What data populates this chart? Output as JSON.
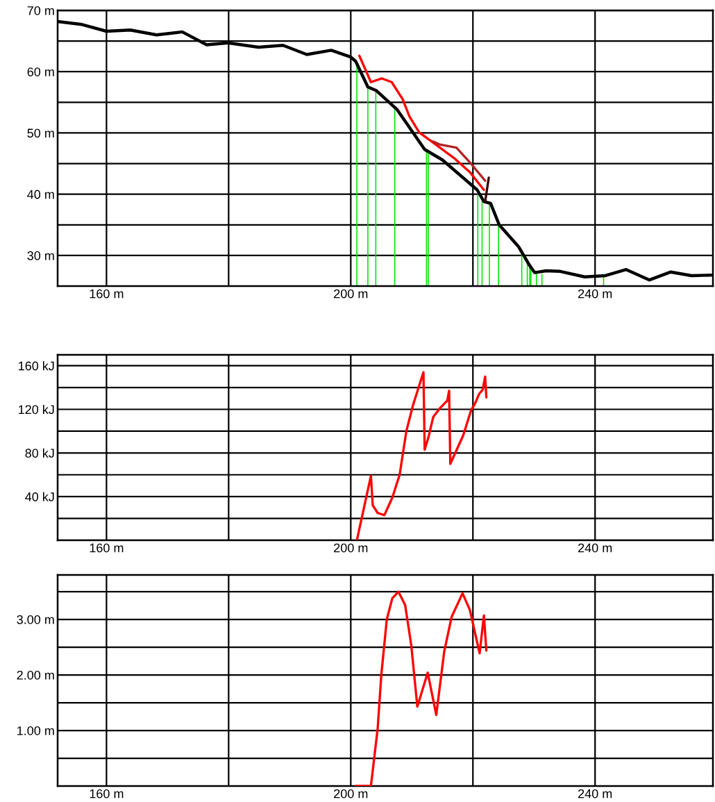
{
  "chart_data": [
    {
      "type": "line",
      "xlim": [
        152,
        259.3
      ],
      "ylim": [
        25,
        70
      ],
      "grid": true,
      "xticks": [
        {
          "value": 160,
          "label": "160 m"
        },
        {
          "value": 180,
          "label": null
        },
        {
          "value": 200,
          "label": "200 m"
        },
        {
          "value": 220,
          "label": null
        },
        {
          "value": 240,
          "label": "240 m"
        }
      ],
      "yticks": [
        {
          "value": 30,
          "label": "30 m"
        },
        {
          "value": 35,
          "label": null
        },
        {
          "value": 40,
          "label": "40 m"
        },
        {
          "value": 45,
          "label": null
        },
        {
          "value": 50,
          "label": "50 m"
        },
        {
          "value": 55,
          "label": null
        },
        {
          "value": 60,
          "label": "60 m"
        },
        {
          "value": 65,
          "label": null
        },
        {
          "value": 70,
          "label": "70 m"
        }
      ],
      "series": [
        {
          "type": "bar",
          "color": "#00e600",
          "x": [
            201.0,
            202.8,
            204.1,
            207.2,
            212.4,
            212.7,
            220.8,
            221.5,
            222.7,
            224.2,
            228.0,
            228.9,
            229.3,
            229.5,
            230.4,
            231.3,
            241.4
          ],
          "values": [
            60.9,
            57.5,
            56.9,
            54.2,
            47.2,
            47.0,
            40.5,
            39.2,
            38.6,
            35.1,
            30.8,
            29.0,
            28.4,
            28.2,
            27.3,
            27.0,
            26.7
          ]
        },
        {
          "type": "line",
          "color": "#000000",
          "x": [
            152,
            156.0,
            160.0,
            163.9,
            168.2,
            172.4,
            176.4,
            179.9,
            184.9,
            188.9,
            192.8,
            196.8,
            200.0,
            200.8,
            202.8,
            204.2,
            207.6,
            212.1,
            215.0,
            220.7,
            221.8,
            222.9,
            224.3,
            227.5,
            229.2,
            230.1,
            232.0,
            234.3,
            238.3,
            241.7,
            245.1,
            248.9,
            252.4,
            255.8,
            259.3
          ],
          "values": [
            68.2,
            67.7,
            66.6,
            66.8,
            66.0,
            66.5,
            64.4,
            64.7,
            64.0,
            64.3,
            62.8,
            63.5,
            62.4,
            61.7,
            57.5,
            56.9,
            53.8,
            47.3,
            45.6,
            40.7,
            38.8,
            38.5,
            35.0,
            31.4,
            28.5,
            27.2,
            27.5,
            27.4,
            26.5,
            26.7,
            27.7,
            26.0,
            27.3,
            26.7,
            26.8
          ]
        },
        {
          "type": "line",
          "color": "#ff0000",
          "x": [
            201.4,
            203.3,
            205.1,
            206.7,
            208.5,
            209.6,
            211.2,
            213.8,
            216.9,
            219.5,
            221.8
          ],
          "values": [
            62.6,
            58.3,
            58.9,
            58.3,
            55.5,
            52.7,
            50.1,
            48.2,
            45.9,
            43.6,
            40.7
          ]
        },
        {
          "type": "line",
          "color": "#b22222",
          "x": [
            213.5,
            214.6,
            217.3,
            219.5,
            222.0
          ],
          "values": [
            48.6,
            48.1,
            47.6,
            45.2,
            42.2
          ]
        },
        {
          "type": "line",
          "color": "#3a0000",
          "x": [
            222.6,
            222.0
          ],
          "values": [
            42.7,
            38.8
          ]
        }
      ]
    },
    {
      "type": "line",
      "xlim": [
        152,
        259.3
      ],
      "ylim": [
        0,
        170
      ],
      "grid": true,
      "xticks": [
        {
          "value": 160,
          "label": "160 m"
        },
        {
          "value": 180,
          "label": null
        },
        {
          "value": 200,
          "label": "200 m"
        },
        {
          "value": 220,
          "label": null
        },
        {
          "value": 240,
          "label": "240 m"
        }
      ],
      "yticks": [
        {
          "value": 20,
          "label": null
        },
        {
          "value": 40,
          "label": "40 kJ"
        },
        {
          "value": 60,
          "label": null
        },
        {
          "value": 80,
          "label": "80 kJ"
        },
        {
          "value": 100,
          "label": null
        },
        {
          "value": 120,
          "label": "120 kJ"
        },
        {
          "value": 140,
          "label": null
        },
        {
          "value": 160,
          "label": "160 kJ"
        }
      ],
      "series": [
        {
          "type": "line",
          "color": "#ff0000",
          "x": [
            201.0,
            203.3,
            203.6,
            204.4,
            205.5,
            206.8,
            208.0,
            209.1,
            210.2,
            211.9,
            212.1,
            212.7,
            213.5,
            214.6,
            215.8,
            216.1,
            216.3,
            218.4,
            219.7,
            220.4,
            221.0,
            221.6,
            222.0,
            222.2
          ],
          "values": [
            0,
            59,
            32,
            25,
            23,
            39,
            60,
            100,
            124,
            154,
            83,
            94,
            113,
            121,
            128,
            137,
            70,
            96,
            119,
            126,
            134,
            138,
            150,
            131
          ]
        }
      ]
    },
    {
      "type": "line",
      "xlim": [
        152,
        259.3
      ],
      "ylim": [
        0,
        3.8
      ],
      "grid": true,
      "xticks": [
        {
          "value": 160,
          "label": "160 m"
        },
        {
          "value": 180,
          "label": null
        },
        {
          "value": 200,
          "label": "200 m"
        },
        {
          "value": 220,
          "label": null
        },
        {
          "value": 240,
          "label": "240 m"
        }
      ],
      "yticks": [
        {
          "value": 0.5,
          "label": null
        },
        {
          "value": 1.0,
          "label": "1.00 m"
        },
        {
          "value": 1.5,
          "label": null
        },
        {
          "value": 2.0,
          "label": "2.00 m"
        },
        {
          "value": 2.5,
          "label": null
        },
        {
          "value": 3.0,
          "label": "3.00 m"
        },
        {
          "value": 3.5,
          "label": null
        }
      ],
      "series": [
        {
          "type": "line",
          "color": "#ff0000",
          "x": [
            200.8,
            203.3,
            204.4,
            205.0,
            205.9,
            206.8,
            207.8,
            208.9,
            209.9,
            210.9,
            212.6,
            214.0,
            215.3,
            216.5,
            218.3,
            219.5,
            221.1,
            221.8,
            222.2
          ],
          "values": [
            0,
            0,
            1.03,
            2.0,
            3.0,
            3.38,
            3.5,
            3.26,
            2.54,
            1.43,
            2.04,
            1.28,
            2.42,
            3.04,
            3.47,
            3.17,
            2.39,
            3.07,
            2.44
          ]
        }
      ]
    }
  ]
}
